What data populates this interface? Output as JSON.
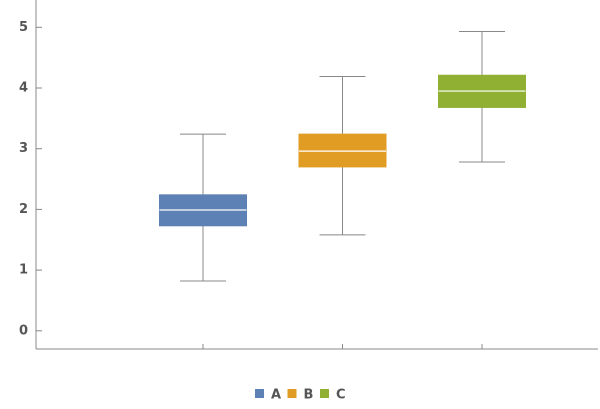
{
  "chart_data": {
    "type": "box",
    "series": [
      {
        "name": "A",
        "color": "#5e81b5",
        "min": 0.82,
        "q1": 1.73,
        "median": 1.99,
        "q3": 2.24,
        "max": 3.24
      },
      {
        "name": "B",
        "color": "#e19c24",
        "min": 1.58,
        "q1": 2.7,
        "median": 2.96,
        "q3": 3.24,
        "max": 4.19
      },
      {
        "name": "C",
        "color": "#8fb032",
        "min": 2.78,
        "q1": 3.68,
        "median": 3.95,
        "q3": 4.21,
        "max": 4.93
      }
    ],
    "ylim": [
      -0.3,
      5.45
    ],
    "yticks": [
      0,
      1,
      2,
      3,
      4,
      5
    ]
  }
}
